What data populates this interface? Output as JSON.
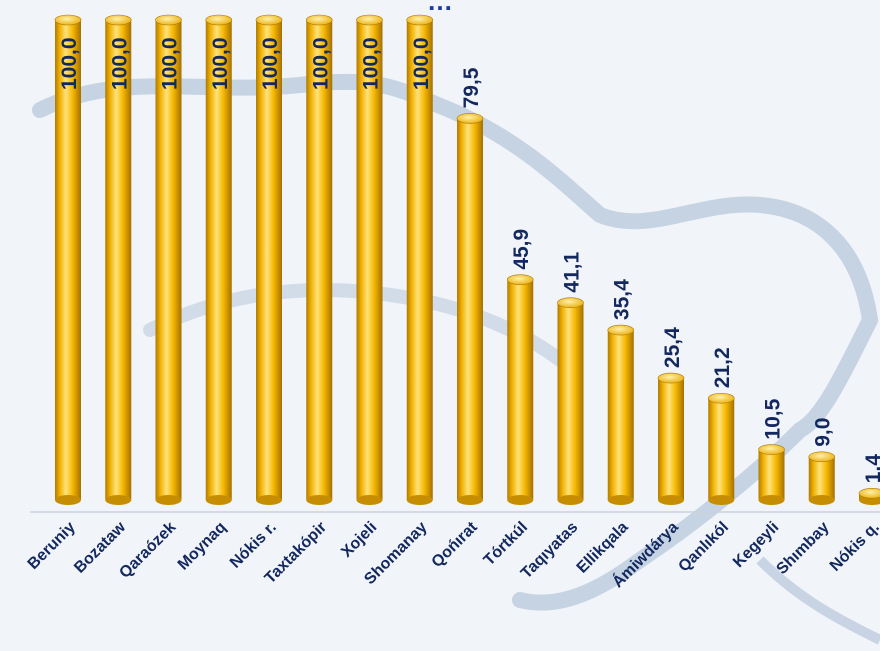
{
  "chart_data": {
    "type": "bar",
    "title": "…",
    "categories": [
      "Beruniy",
      "Bozataw",
      "Qaraózek",
      "Moynaq",
      "Nókis r.",
      "Taxtakópir",
      "Xojeli",
      "Shomanay",
      "Qońırat",
      "Tórtkúl",
      "Taqıyatas",
      "Ellikqala",
      "Ámiwdárya",
      "Qanlıkól",
      "Kegeyli",
      "Shımbay",
      "Nókis q."
    ],
    "values": [
      100.0,
      100.0,
      100.0,
      100.0,
      100.0,
      100.0,
      100.0,
      100.0,
      79.5,
      45.9,
      41.1,
      35.4,
      25.4,
      21.2,
      10.5,
      9.0,
      1.4
    ],
    "value_labels": [
      "100,0",
      "100,0",
      "100,0",
      "100,0",
      "100,0",
      "100,0",
      "100,0",
      "100,0",
      "79,5",
      "45,9",
      "41,1",
      "35,4",
      "25,4",
      "21,2",
      "10,5",
      "9,0",
      "1,4"
    ],
    "ylim": [
      0,
      100
    ],
    "grid": false,
    "legend": "none",
    "colors": {
      "bar": "#f5b800",
      "bar_highlight": "#ffe27a",
      "bar_shadow": "#b07a00",
      "label": "#13285f",
      "title": "#1b3aa8",
      "map_outline": "#9fb4d0"
    }
  }
}
